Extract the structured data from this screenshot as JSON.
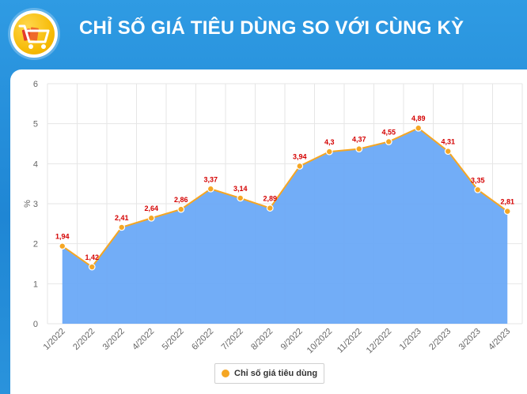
{
  "header": {
    "title": "CHỈ SỐ GIÁ TIÊU DÙNG SO VỚI CÙNG KỲ",
    "logo_icon": "shopping-cart-icon"
  },
  "colors": {
    "background": "#1f86d4",
    "area": "#6aa9f7",
    "line": "#f5a623",
    "label": "#d40000"
  },
  "chart_data": {
    "type": "area",
    "title": "",
    "xlabel": "",
    "ylabel": "%",
    "ylim": [
      0,
      6
    ],
    "yticks": [
      0,
      1,
      2,
      3,
      4,
      5,
      6
    ],
    "grid": true,
    "legend_position": "bottom",
    "categories": [
      "1/2022",
      "2/2022",
      "3/2022",
      "4/2022",
      "5/2022",
      "6/2022",
      "7/2022",
      "8/2022",
      "9/2022",
      "10/2022",
      "11/2022",
      "12/2022",
      "1/2023",
      "2/2023",
      "3/2023",
      "4/2023"
    ],
    "series": [
      {
        "name": "Chỉ số giá tiêu dùng",
        "values": [
          1.94,
          1.42,
          2.41,
          2.64,
          2.86,
          3.37,
          3.14,
          2.89,
          3.94,
          4.3,
          4.37,
          4.55,
          4.89,
          4.31,
          3.35,
          2.81
        ],
        "labels": [
          "1,94",
          "1,42",
          "2,41",
          "2,64",
          "2,86",
          "3,37",
          "3,14",
          "2,89",
          "3,94",
          "4,3",
          "4,37",
          "4,55",
          "4,89",
          "4,31",
          "3,35",
          "2,81"
        ]
      }
    ]
  }
}
